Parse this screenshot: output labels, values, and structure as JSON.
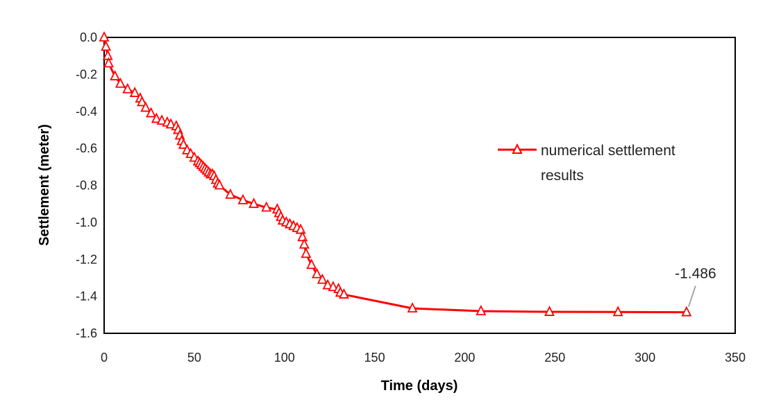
{
  "chart_data": {
    "type": "line",
    "title": "",
    "xlabel": "Time (days)",
    "ylabel": "Settlement (meter)",
    "xlim": [
      0,
      350
    ],
    "ylim": [
      -1.6,
      0.0
    ],
    "x_ticks": [
      "0",
      "50",
      "100",
      "150",
      "200",
      "250",
      "300",
      "350"
    ],
    "y_ticks": [
      "0.0",
      "-0.2",
      "-0.4",
      "-0.6",
      "-0.8",
      "-1.0",
      "-1.2",
      "-1.4",
      "-1.6"
    ],
    "grid": false,
    "legend_position": "right",
    "series": [
      {
        "name": "numerical settlement results",
        "color": "#ff0000",
        "marker": "triangle",
        "x": [
          0,
          1,
          2,
          2.5,
          6,
          9,
          13,
          17,
          20,
          21,
          23,
          26,
          29,
          32,
          35,
          37,
          40,
          41,
          42,
          43,
          44,
          46,
          48,
          50,
          52,
          53,
          54,
          55,
          56,
          57,
          58,
          59,
          60,
          61,
          62,
          63,
          64,
          70,
          77,
          83,
          90,
          96,
          97,
          98,
          99,
          101,
          103,
          105,
          107,
          109,
          110,
          111,
          112,
          115,
          118,
          121,
          124,
          127,
          130,
          131,
          133,
          171,
          209,
          247,
          285,
          323
        ],
        "y": [
          0.0,
          -0.05,
          -0.1,
          -0.14,
          -0.21,
          -0.25,
          -0.28,
          -0.3,
          -0.33,
          -0.35,
          -0.38,
          -0.41,
          -0.44,
          -0.45,
          -0.46,
          -0.47,
          -0.48,
          -0.5,
          -0.53,
          -0.56,
          -0.58,
          -0.61,
          -0.63,
          -0.65,
          -0.67,
          -0.68,
          -0.69,
          -0.7,
          -0.71,
          -0.72,
          -0.73,
          -0.74,
          -0.74,
          -0.75,
          -0.77,
          -0.79,
          -0.8,
          -0.85,
          -0.88,
          -0.9,
          -0.92,
          -0.93,
          -0.95,
          -0.97,
          -0.99,
          -1.0,
          -1.01,
          -1.02,
          -1.03,
          -1.04,
          -1.08,
          -1.12,
          -1.17,
          -1.23,
          -1.28,
          -1.31,
          -1.34,
          -1.35,
          -1.36,
          -1.38,
          -1.39,
          -1.465,
          -1.48,
          -1.484,
          -1.485,
          -1.486
        ]
      }
    ],
    "annotations": [
      {
        "text": "-1.486",
        "x": 323,
        "y": -1.486
      }
    ]
  }
}
